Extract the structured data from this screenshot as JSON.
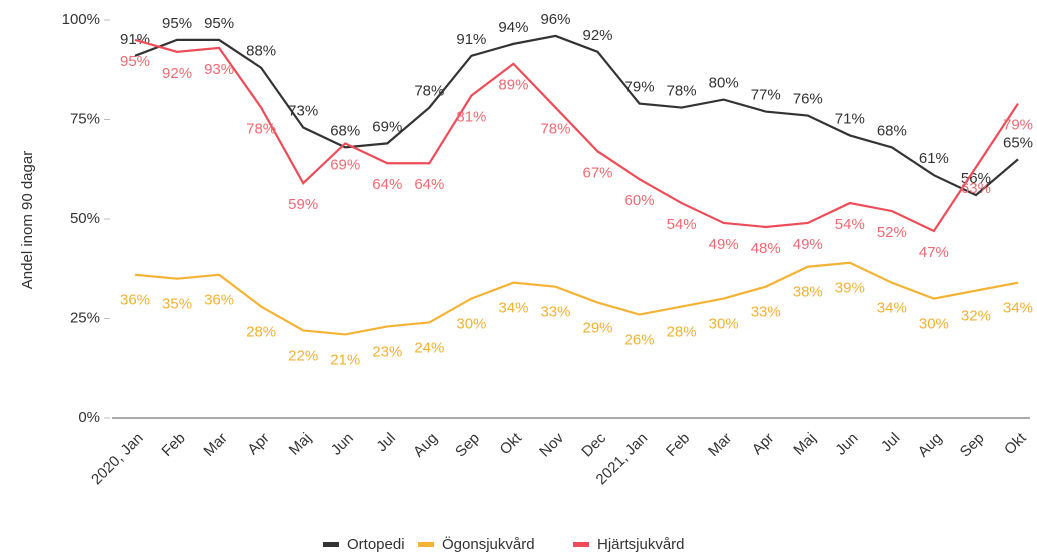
{
  "chart_data": {
    "type": "line",
    "y_label": "Andel inom 90 dagar",
    "categories": [
      "2020, Jan",
      "Feb",
      "Mar",
      "Apr",
      "Maj",
      "Jun",
      "Jul",
      "Aug",
      "Sep",
      "Okt",
      "Nov",
      "Dec",
      "2021, Jan",
      "Feb",
      "Mar",
      "Apr",
      "Maj",
      "Jun",
      "Jul",
      "Aug",
      "Sep",
      "Okt"
    ],
    "series": [
      {
        "name": "Ortopedi",
        "color": "#333333",
        "label_color": "#333333",
        "values": [
          91,
          95,
          95,
          88,
          73,
          68,
          69,
          78,
          91,
          94,
          96,
          92,
          79,
          78,
          80,
          77,
          76,
          71,
          68,
          61,
          56,
          65
        ],
        "value_labels": [
          "91%",
          "95%",
          "95%",
          "88%",
          "73%",
          "68%",
          "69%",
          "78%",
          "91%",
          "94%",
          "96%",
          "92%",
          "79%",
          "78%",
          "80%",
          "77%",
          "76%",
          "71%",
          "68%",
          "61%",
          "56%",
          "65%"
        ]
      },
      {
        "name": "Ögonsjukvård",
        "color": "#f5b335",
        "label_color": "#f2b233",
        "values": [
          36,
          35,
          36,
          28,
          22,
          21,
          23,
          24,
          30,
          34,
          33,
          29,
          26,
          28,
          30,
          33,
          38,
          39,
          34,
          30,
          32,
          34
        ],
        "value_labels": [
          "36%",
          "35%",
          "36%",
          "28%",
          "22%",
          "21%",
          "23%",
          "24%",
          "30%",
          "34%",
          "33%",
          "29%",
          "26%",
          "28%",
          "30%",
          "33%",
          "38%",
          "39%",
          "34%",
          "30%",
          "32%",
          "34%"
        ]
      },
      {
        "name": "Hjärtsjukvård",
        "color": "#ee4c58",
        "label_color": "#f06a72",
        "values": [
          95,
          92,
          93,
          78,
          59,
          69,
          64,
          64,
          81,
          89,
          78,
          67,
          60,
          54,
          49,
          48,
          49,
          54,
          52,
          47,
          63,
          79
        ],
        "value_labels": [
          "95%",
          "92%",
          "93%",
          "78%",
          "59%",
          "69%",
          "64%",
          "64%",
          "81%",
          "89%",
          "78%",
          "67%",
          "60%",
          "54%",
          "49%",
          "48%",
          "49%",
          "54%",
          "52%",
          "47%",
          "63%",
          "79%"
        ]
      }
    ],
    "ylim": [
      0,
      100
    ],
    "yticks": [
      {
        "value": 0,
        "label": "0%"
      },
      {
        "value": 25,
        "label": "25%"
      },
      {
        "value": 50,
        "label": "50%"
      },
      {
        "value": 75,
        "label": "75%"
      },
      {
        "value": 100,
        "label": "100%"
      }
    ],
    "grid": false,
    "legend": "bottom"
  }
}
